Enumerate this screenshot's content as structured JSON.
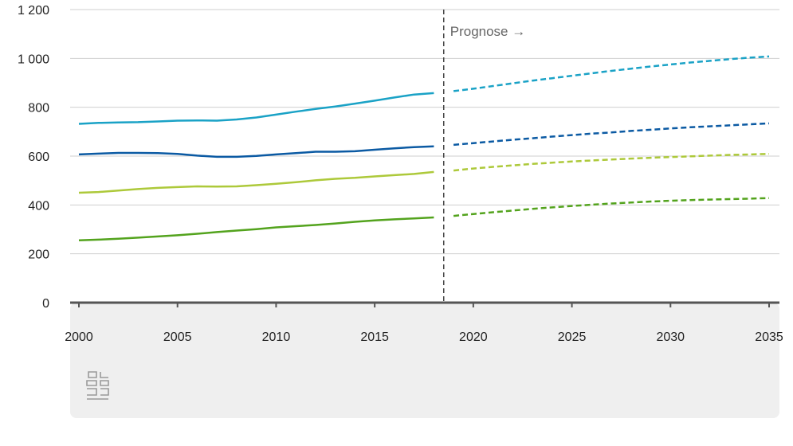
{
  "chart_data": {
    "type": "line",
    "title": "",
    "xlabel": "",
    "ylabel": "",
    "xlim": [
      2000,
      2035
    ],
    "ylim": [
      0,
      1200
    ],
    "grid": true,
    "legend": "none",
    "x_ticks": [
      "2000",
      "2005",
      "2010",
      "2015",
      "2020",
      "2025",
      "2030",
      "2035"
    ],
    "y_ticks": [
      "0",
      "200",
      "400",
      "600",
      "800",
      "1 000",
      "1 200"
    ],
    "annotation": "Prognose →",
    "forecast_boundary": 2018.5,
    "series": [
      {
        "color": "#1aa2c6",
        "observed": {
          "x": [
            2000,
            2001,
            2002,
            2003,
            2004,
            2005,
            2006,
            2007,
            2008,
            2009,
            2010,
            2011,
            2012,
            2013,
            2014,
            2015,
            2016,
            2017,
            2018
          ],
          "y": [
            732,
            736,
            738,
            739,
            742,
            745,
            746,
            745,
            750,
            758,
            770,
            782,
            793,
            803,
            815,
            827,
            840,
            852,
            858
          ]
        },
        "forecast": {
          "x": [
            2019,
            2020,
            2021,
            2022,
            2023,
            2024,
            2025,
            2026,
            2027,
            2028,
            2029,
            2030,
            2031,
            2032,
            2033,
            2034,
            2035
          ],
          "y": [
            866,
            876,
            887,
            898,
            909,
            919,
            929,
            939,
            949,
            958,
            967,
            975,
            983,
            990,
            997,
            1003,
            1008
          ]
        }
      },
      {
        "color": "#0b5aa3",
        "observed": {
          "x": [
            2000,
            2001,
            2002,
            2003,
            2004,
            2005,
            2006,
            2007,
            2008,
            2009,
            2010,
            2011,
            2012,
            2013,
            2014,
            2015,
            2016,
            2017,
            2018
          ],
          "y": [
            607,
            610,
            613,
            613,
            612,
            609,
            602,
            597,
            597,
            601,
            607,
            612,
            618,
            618,
            620,
            626,
            632,
            637,
            640
          ]
        },
        "forecast": {
          "x": [
            2019,
            2020,
            2021,
            2022,
            2023,
            2024,
            2025,
            2026,
            2027,
            2028,
            2029,
            2030,
            2031,
            2032,
            2033,
            2034,
            2035
          ],
          "y": [
            646,
            653,
            660,
            667,
            673,
            680,
            686,
            692,
            697,
            703,
            708,
            713,
            718,
            722,
            726,
            730,
            734
          ]
        }
      },
      {
        "color": "#adc93a",
        "observed": {
          "x": [
            2000,
            2001,
            2002,
            2003,
            2004,
            2005,
            2006,
            2007,
            2008,
            2009,
            2010,
            2011,
            2012,
            2013,
            2014,
            2015,
            2016,
            2017,
            2018
          ],
          "y": [
            450,
            453,
            459,
            465,
            470,
            473,
            476,
            475,
            476,
            481,
            487,
            493,
            501,
            507,
            511,
            517,
            522,
            527,
            535
          ]
        },
        "forecast": {
          "x": [
            2019,
            2020,
            2021,
            2022,
            2023,
            2024,
            2025,
            2026,
            2027,
            2028,
            2029,
            2030,
            2031,
            2032,
            2033,
            2034,
            2035
          ],
          "y": [
            541,
            549,
            556,
            562,
            568,
            573,
            578,
            582,
            586,
            590,
            593,
            596,
            599,
            602,
            605,
            607,
            609
          ]
        }
      },
      {
        "color": "#53a31d",
        "observed": {
          "x": [
            2000,
            2001,
            2002,
            2003,
            2004,
            2005,
            2006,
            2007,
            2008,
            2009,
            2010,
            2011,
            2012,
            2013,
            2014,
            2015,
            2016,
            2017,
            2018
          ],
          "y": [
            255,
            258,
            262,
            266,
            271,
            276,
            282,
            289,
            295,
            301,
            308,
            313,
            318,
            324,
            331,
            337,
            341,
            345,
            349
          ]
        },
        "forecast": {
          "x": [
            2019,
            2020,
            2021,
            2022,
            2023,
            2024,
            2025,
            2026,
            2027,
            2028,
            2029,
            2030,
            2031,
            2032,
            2033,
            2034,
            2035
          ],
          "y": [
            355,
            363,
            370,
            377,
            384,
            390,
            396,
            401,
            406,
            410,
            414,
            417,
            420,
            422,
            424,
            426,
            428
          ]
        }
      }
    ]
  }
}
